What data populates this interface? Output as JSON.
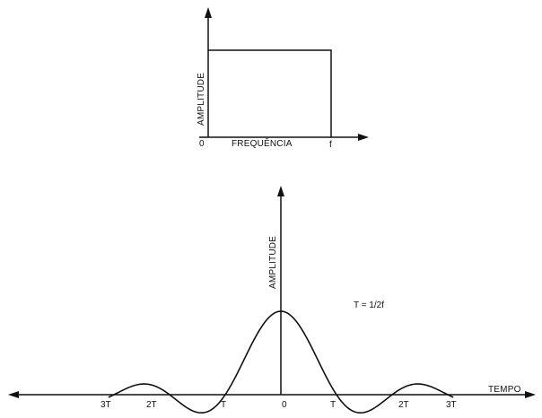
{
  "colors": {
    "ink": "#111111",
    "background": "#ffffff"
  },
  "spectrum_plot": {
    "y_label": "AMPLITUDE",
    "x_label": "FREQUÊNCIA",
    "origin_label": "0",
    "cutoff_label": "f"
  },
  "time_plot": {
    "y_label": "AMPLITUDE",
    "x_label": "TEMPO",
    "formula": "T = 1/2f",
    "tick_labels": [
      "3T",
      "2T",
      "T",
      "0",
      "T",
      "2T",
      "3T"
    ]
  }
}
